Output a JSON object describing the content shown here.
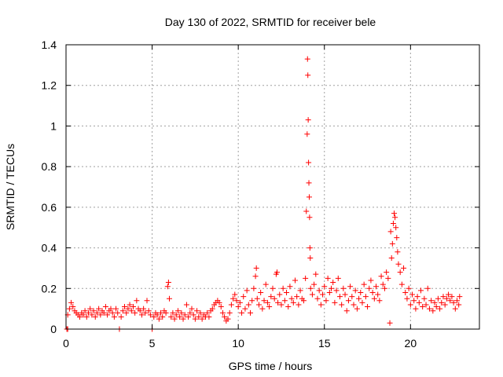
{
  "chart_data": {
    "type": "scatter",
    "title": "Day 130 of 2022, SRMTID for receiver bele",
    "xlabel": "GPS time / hours",
    "ylabel": "SRMTID / TECUs",
    "xlim": [
      0,
      24
    ],
    "ylim": [
      0,
      1.4
    ],
    "x_ticks": [
      0,
      5,
      10,
      15,
      20
    ],
    "x_tick_labels": [
      "0",
      "5",
      "10",
      "15",
      "20"
    ],
    "y_ticks": [
      0,
      0.2,
      0.4,
      0.6,
      0.8,
      1.0,
      1.2,
      1.4
    ],
    "y_tick_labels": [
      "0",
      "0.2",
      "0.4",
      "0.6",
      "0.8",
      "1",
      "1.2",
      "1.4"
    ],
    "grid": true,
    "marker": "plus",
    "series_color": "#ff0000",
    "series": [
      {
        "name": "SRMTID",
        "points": [
          [
            0.05,
            0.0
          ],
          [
            0.1,
            0.0
          ],
          [
            0.1,
            0.07
          ],
          [
            0.2,
            0.1
          ],
          [
            0.3,
            0.13
          ],
          [
            0.4,
            0.11
          ],
          [
            0.5,
            0.09
          ],
          [
            0.6,
            0.08
          ],
          [
            0.7,
            0.07
          ],
          [
            0.8,
            0.06
          ],
          [
            0.9,
            0.08
          ],
          [
            1.0,
            0.07
          ],
          [
            1.1,
            0.09
          ],
          [
            1.2,
            0.06
          ],
          [
            1.3,
            0.08
          ],
          [
            1.4,
            0.1
          ],
          [
            1.5,
            0.07
          ],
          [
            1.6,
            0.09
          ],
          [
            1.7,
            0.06
          ],
          [
            1.8,
            0.08
          ],
          [
            1.9,
            0.1
          ],
          [
            2.0,
            0.07
          ],
          [
            2.1,
            0.09
          ],
          [
            2.2,
            0.08
          ],
          [
            2.3,
            0.11
          ],
          [
            2.4,
            0.07
          ],
          [
            2.5,
            0.09
          ],
          [
            2.6,
            0.1
          ],
          [
            2.7,
            0.08
          ],
          [
            2.8,
            0.06
          ],
          [
            2.9,
            0.1
          ],
          [
            3.0,
            0.08
          ],
          [
            3.1,
            0.0
          ],
          [
            3.2,
            0.06
          ],
          [
            3.3,
            0.09
          ],
          [
            3.4,
            0.11
          ],
          [
            3.5,
            0.08
          ],
          [
            3.6,
            0.1
          ],
          [
            3.7,
            0.12
          ],
          [
            3.8,
            0.09
          ],
          [
            3.9,
            0.11
          ],
          [
            4.0,
            0.08
          ],
          [
            4.1,
            0.14
          ],
          [
            4.2,
            0.1
          ],
          [
            4.3,
            0.09
          ],
          [
            4.4,
            0.07
          ],
          [
            4.5,
            0.1
          ],
          [
            4.6,
            0.08
          ],
          [
            4.7,
            0.14
          ],
          [
            4.8,
            0.09
          ],
          [
            4.9,
            0.07
          ],
          [
            5.0,
            0.0
          ],
          [
            5.1,
            0.06
          ],
          [
            5.2,
            0.08
          ],
          [
            5.3,
            0.07
          ],
          [
            5.4,
            0.05
          ],
          [
            5.5,
            0.08
          ],
          [
            5.6,
            0.06
          ],
          [
            5.7,
            0.09
          ],
          [
            5.8,
            0.08
          ],
          [
            5.9,
            0.21
          ],
          [
            5.95,
            0.23
          ],
          [
            6.0,
            0.15
          ],
          [
            6.1,
            0.06
          ],
          [
            6.2,
            0.08
          ],
          [
            6.3,
            0.05
          ],
          [
            6.4,
            0.07
          ],
          [
            6.5,
            0.09
          ],
          [
            6.6,
            0.06
          ],
          [
            6.7,
            0.08
          ],
          [
            6.8,
            0.05
          ],
          [
            6.9,
            0.07
          ],
          [
            7.0,
            0.12
          ],
          [
            7.1,
            0.06
          ],
          [
            7.2,
            0.08
          ],
          [
            7.3,
            0.1
          ],
          [
            7.4,
            0.07
          ],
          [
            7.5,
            0.05
          ],
          [
            7.6,
            0.09
          ],
          [
            7.7,
            0.06
          ],
          [
            7.8,
            0.08
          ],
          [
            7.9,
            0.05
          ],
          [
            8.0,
            0.07
          ],
          [
            8.1,
            0.06
          ],
          [
            8.2,
            0.08
          ],
          [
            8.3,
            0.06
          ],
          [
            8.4,
            0.09
          ],
          [
            8.5,
            0.1
          ],
          [
            8.6,
            0.12
          ],
          [
            8.7,
            0.13
          ],
          [
            8.8,
            0.14
          ],
          [
            8.9,
            0.13
          ],
          [
            9.0,
            0.11
          ],
          [
            9.1,
            0.08
          ],
          [
            9.2,
            0.06
          ],
          [
            9.3,
            0.04
          ],
          [
            9.4,
            0.05
          ],
          [
            9.5,
            0.08
          ],
          [
            9.6,
            0.12
          ],
          [
            9.7,
            0.15
          ],
          [
            9.8,
            0.17
          ],
          [
            9.9,
            0.14
          ],
          [
            10.0,
            0.11
          ],
          [
            10.1,
            0.13
          ],
          [
            10.2,
            0.08
          ],
          [
            10.3,
            0.16
          ],
          [
            10.4,
            0.1
          ],
          [
            10.5,
            0.19
          ],
          [
            10.6,
            0.12
          ],
          [
            10.7,
            0.08
          ],
          [
            10.8,
            0.14
          ],
          [
            10.9,
            0.2
          ],
          [
            11.0,
            0.26
          ],
          [
            11.05,
            0.3
          ],
          [
            11.1,
            0.15
          ],
          [
            11.2,
            0.12
          ],
          [
            11.3,
            0.18
          ],
          [
            11.4,
            0.1
          ],
          [
            11.5,
            0.14
          ],
          [
            11.6,
            0.22
          ],
          [
            11.7,
            0.13
          ],
          [
            11.8,
            0.11
          ],
          [
            11.9,
            0.16
          ],
          [
            12.0,
            0.2
          ],
          [
            12.1,
            0.15
          ],
          [
            12.2,
            0.27
          ],
          [
            12.25,
            0.28
          ],
          [
            12.3,
            0.13
          ],
          [
            12.4,
            0.17
          ],
          [
            12.5,
            0.12
          ],
          [
            12.6,
            0.2
          ],
          [
            12.7,
            0.14
          ],
          [
            12.8,
            0.18
          ],
          [
            12.9,
            0.11
          ],
          [
            13.0,
            0.21
          ],
          [
            13.1,
            0.15
          ],
          [
            13.2,
            0.13
          ],
          [
            13.3,
            0.24
          ],
          [
            13.4,
            0.16
          ],
          [
            13.5,
            0.12
          ],
          [
            13.6,
            0.19
          ],
          [
            13.7,
            0.15
          ],
          [
            13.8,
            0.14
          ],
          [
            13.9,
            0.25
          ],
          [
            13.95,
            0.58
          ],
          [
            14.0,
            0.96
          ],
          [
            14.02,
            1.33
          ],
          [
            14.04,
            1.25
          ],
          [
            14.06,
            1.03
          ],
          [
            14.08,
            0.82
          ],
          [
            14.1,
            0.72
          ],
          [
            14.12,
            0.65
          ],
          [
            14.14,
            0.55
          ],
          [
            14.16,
            0.4
          ],
          [
            14.18,
            0.35
          ],
          [
            14.2,
            0.2
          ],
          [
            14.3,
            0.17
          ],
          [
            14.4,
            0.22
          ],
          [
            14.5,
            0.27
          ],
          [
            14.6,
            0.15
          ],
          [
            14.7,
            0.19
          ],
          [
            14.8,
            0.12
          ],
          [
            14.9,
            0.17
          ],
          [
            15.0,
            0.21
          ],
          [
            15.1,
            0.14
          ],
          [
            15.2,
            0.25
          ],
          [
            15.3,
            0.18
          ],
          [
            15.4,
            0.2
          ],
          [
            15.5,
            0.23
          ],
          [
            15.6,
            0.13
          ],
          [
            15.7,
            0.19
          ],
          [
            15.8,
            0.25
          ],
          [
            15.9,
            0.16
          ],
          [
            16.0,
            0.12
          ],
          [
            16.1,
            0.2
          ],
          [
            16.2,
            0.17
          ],
          [
            16.3,
            0.09
          ],
          [
            16.4,
            0.14
          ],
          [
            16.5,
            0.21
          ],
          [
            16.6,
            0.16
          ],
          [
            16.7,
            0.12
          ],
          [
            16.8,
            0.19
          ],
          [
            16.9,
            0.1
          ],
          [
            17.0,
            0.15
          ],
          [
            17.1,
            0.18
          ],
          [
            17.2,
            0.13
          ],
          [
            17.3,
            0.22
          ],
          [
            17.4,
            0.16
          ],
          [
            17.5,
            0.11
          ],
          [
            17.6,
            0.2
          ],
          [
            17.7,
            0.24
          ],
          [
            17.8,
            0.18
          ],
          [
            17.9,
            0.15
          ],
          [
            18.0,
            0.21
          ],
          [
            18.1,
            0.17
          ],
          [
            18.2,
            0.14
          ],
          [
            18.3,
            0.26
          ],
          [
            18.4,
            0.22
          ],
          [
            18.5,
            0.2
          ],
          [
            18.6,
            0.28
          ],
          [
            18.7,
            0.25
          ],
          [
            18.8,
            0.03
          ],
          [
            18.85,
            0.48
          ],
          [
            18.9,
            0.35
          ],
          [
            18.95,
            0.42
          ],
          [
            19.0,
            0.52
          ],
          [
            19.05,
            0.57
          ],
          [
            19.1,
            0.55
          ],
          [
            19.15,
            0.5
          ],
          [
            19.2,
            0.45
          ],
          [
            19.25,
            0.38
          ],
          [
            19.3,
            0.32
          ],
          [
            19.4,
            0.28
          ],
          [
            19.5,
            0.22
          ],
          [
            19.6,
            0.3
          ],
          [
            19.7,
            0.18
          ],
          [
            19.8,
            0.15
          ],
          [
            19.9,
            0.2
          ],
          [
            20.0,
            0.12
          ],
          [
            20.1,
            0.17
          ],
          [
            20.2,
            0.14
          ],
          [
            20.3,
            0.1
          ],
          [
            20.4,
            0.16
          ],
          [
            20.5,
            0.13
          ],
          [
            20.6,
            0.19
          ],
          [
            20.7,
            0.11
          ],
          [
            20.8,
            0.15
          ],
          [
            20.9,
            0.12
          ],
          [
            21.0,
            0.2
          ],
          [
            21.1,
            0.1
          ],
          [
            21.2,
            0.14
          ],
          [
            21.3,
            0.09
          ],
          [
            21.4,
            0.13
          ],
          [
            21.5,
            0.11
          ],
          [
            21.6,
            0.15
          ],
          [
            21.7,
            0.1
          ],
          [
            21.8,
            0.13
          ],
          [
            21.9,
            0.16
          ],
          [
            22.0,
            0.12
          ],
          [
            22.1,
            0.15
          ],
          [
            22.2,
            0.17
          ],
          [
            22.3,
            0.14
          ],
          [
            22.4,
            0.16
          ],
          [
            22.5,
            0.13
          ],
          [
            22.6,
            0.1
          ],
          [
            22.7,
            0.14
          ],
          [
            22.8,
            0.12
          ],
          [
            22.85,
            0.16
          ]
        ]
      }
    ]
  }
}
